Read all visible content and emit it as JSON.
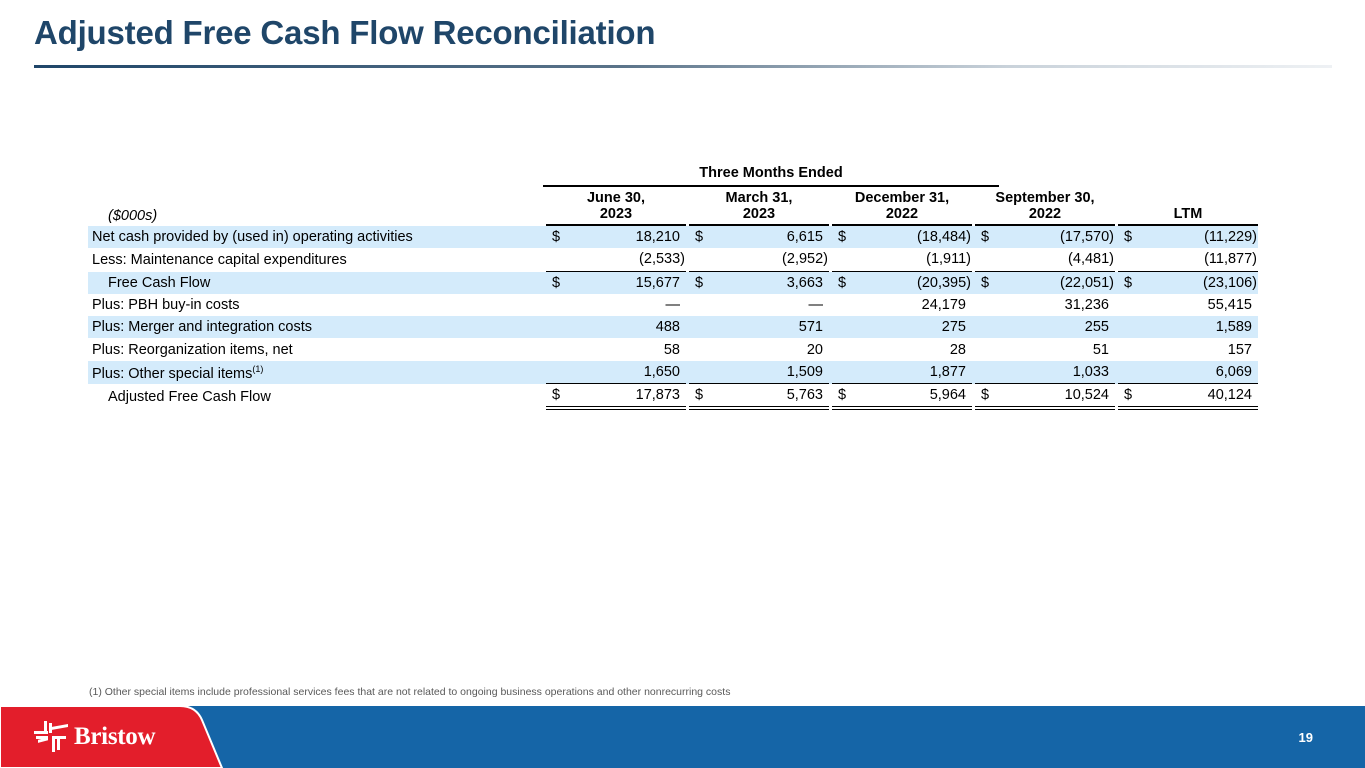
{
  "header": {
    "title": "Adjusted Free Cash Flow Reconciliation"
  },
  "table": {
    "group_header": "Three Months Ended",
    "units_label": "($000s)",
    "columns": [
      {
        "line1": "June 30,",
        "line2": "2023"
      },
      {
        "line1": "March 31,",
        "line2": "2023"
      },
      {
        "line1": "December 31,",
        "line2": "2022"
      },
      {
        "line1": "September  30,",
        "line2": "2022"
      },
      {
        "line1": "",
        "line2": "LTM"
      }
    ],
    "rows": [
      {
        "label": "Net cash provided by (used in) operating activities",
        "currency": [
          "$",
          "$",
          "$",
          "$",
          "$"
        ],
        "values": [
          "18,210",
          "6,615",
          "(18,484)",
          "(17,570)",
          "(11,229)"
        ]
      },
      {
        "label": "Less: Maintenance capital expenditures",
        "currency": [
          "",
          "",
          "",
          "",
          ""
        ],
        "values": [
          "(2,533)",
          "(2,952)",
          "(1,911)",
          "(4,481)",
          "(11,877)"
        ]
      },
      {
        "label": "Free Cash Flow",
        "currency": [
          "$",
          "$",
          "$",
          "$",
          "$"
        ],
        "values": [
          "15,677",
          "3,663",
          "(20,395)",
          "(22,051)",
          "(23,106)"
        ]
      },
      {
        "label": "Plus: PBH buy-in costs",
        "currency": [
          "",
          "",
          "",
          "",
          ""
        ],
        "values": [
          "—",
          "—",
          "24,179",
          "31,236",
          "55,415"
        ]
      },
      {
        "label": "Plus: Merger and integration costs",
        "currency": [
          "",
          "",
          "",
          "",
          ""
        ],
        "values": [
          "488",
          "571",
          "275",
          "255",
          "1,589"
        ]
      },
      {
        "label": "Plus: Reorganization items, net",
        "currency": [
          "",
          "",
          "",
          "",
          ""
        ],
        "values": [
          "58",
          "20",
          "28",
          "51",
          "157"
        ]
      },
      {
        "label": "Plus: Other special items",
        "footnote_ref": "(1)",
        "currency": [
          "",
          "",
          "",
          "",
          ""
        ],
        "values": [
          "1,650",
          "1,509",
          "1,877",
          "1,033",
          "6,069"
        ]
      },
      {
        "label": "Adjusted Free Cash Flow",
        "currency": [
          "$",
          "$",
          "$",
          "$",
          "$"
        ],
        "values": [
          "17,873",
          "5,763",
          "5,964",
          "10,524",
          "40,124"
        ]
      }
    ]
  },
  "footnote": "(1) Other special items include professional services fees that are not related to ongoing business operations and other nonrecurring costs",
  "footer": {
    "brand": "Bristow",
    "page_number": "19",
    "colors": {
      "red": "#e31e2b",
      "blue": "#1565a7"
    }
  }
}
